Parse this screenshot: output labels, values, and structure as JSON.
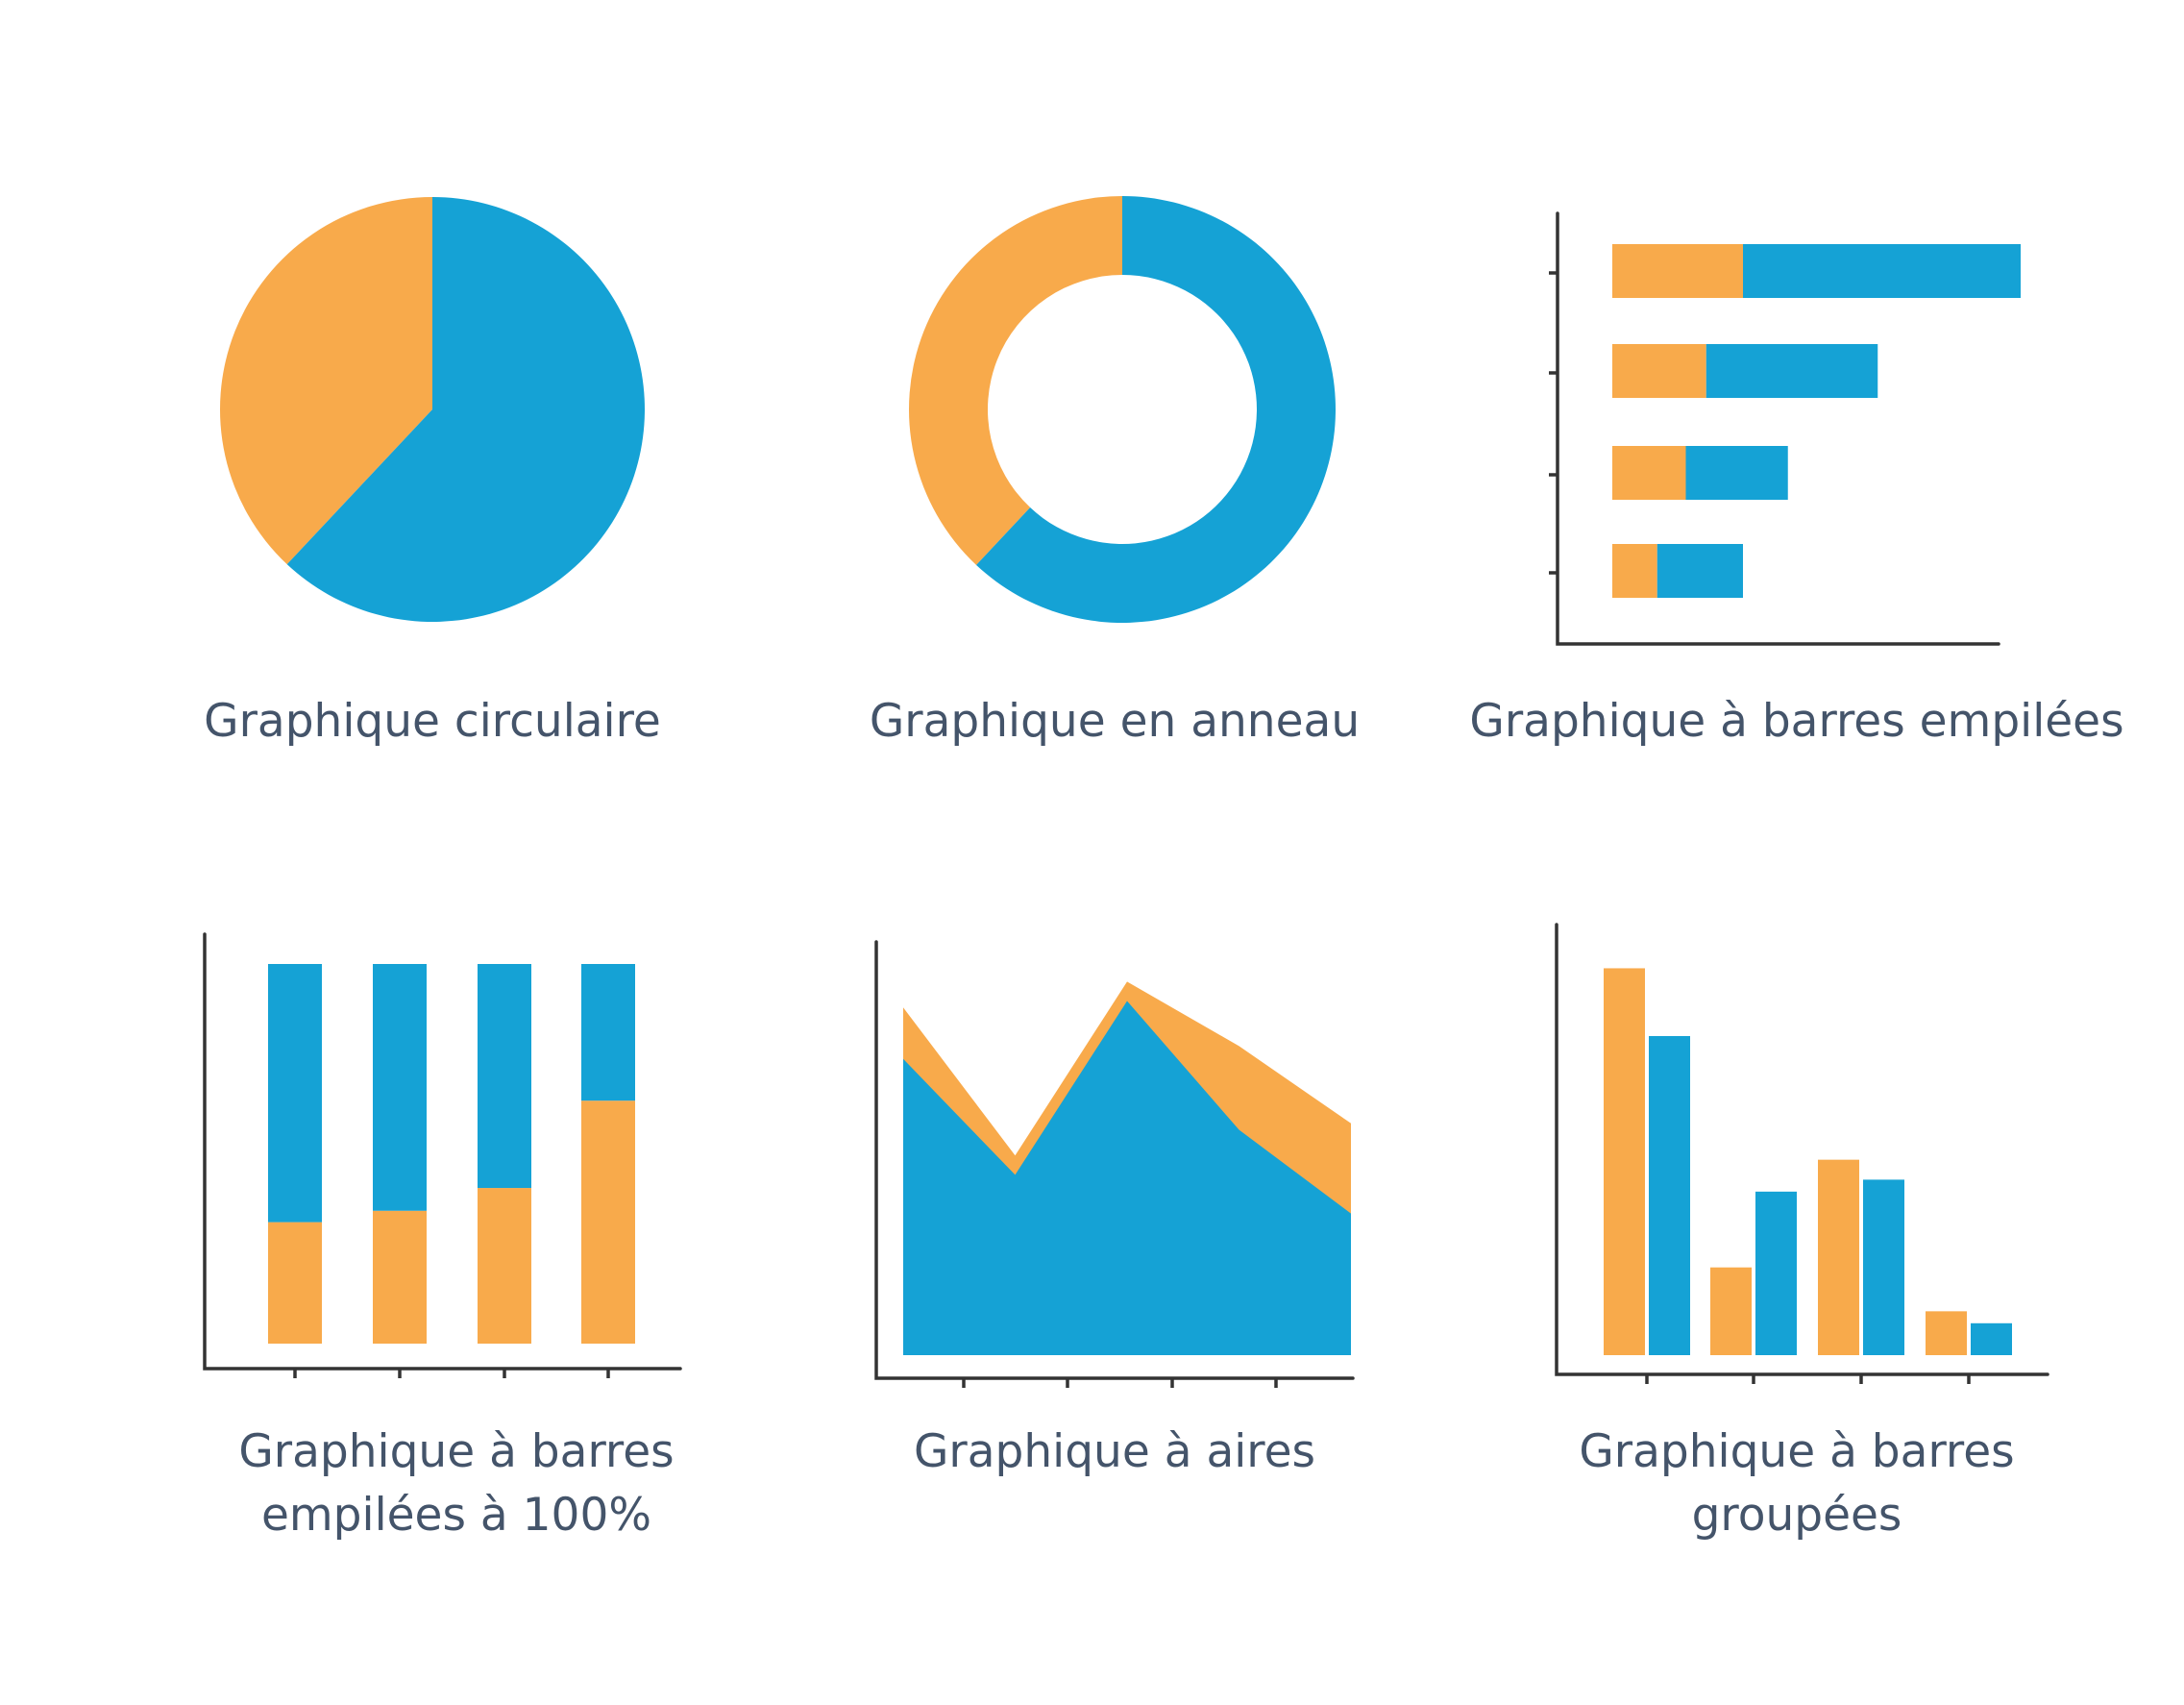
{
  "colors": {
    "orange": "#f8aa4b",
    "blue": "#15a2d5",
    "axis": "#333333",
    "caption": "#44546a"
  },
  "chart_data": [
    {
      "type": "pie",
      "title": "Graphique circulaire",
      "series": [
        {
          "values": [
            38,
            62
          ]
        }
      ]
    },
    {
      "type": "pie",
      "subtype": "donut",
      "title": "Graphique en anneau",
      "series": [
        {
          "values": [
            38,
            62
          ]
        }
      ]
    },
    {
      "type": "bar",
      "orientation": "horizontal",
      "stacked": true,
      "title": "Graphique à barres empilées",
      "series": [
        {
          "values": [
            3.2,
            2.3,
            1.8,
            1.1
          ]
        },
        {
          "values": [
            6.8,
            4.2,
            2.5,
            2.1
          ]
        }
      ],
      "xlim": [
        0,
        12
      ]
    },
    {
      "type": "bar",
      "stacked": "percent",
      "title_lines": [
        "Graphique à barres",
        "empilées à 100%"
      ],
      "series": [
        {
          "values": [
            32,
            35,
            41,
            64
          ]
        },
        {
          "values": [
            68,
            65,
            59,
            36
          ]
        }
      ],
      "ylim": [
        0,
        100
      ]
    },
    {
      "type": "area",
      "stacked": true,
      "title": "Graphique à aires",
      "x": [
        0,
        1,
        2,
        3,
        4
      ],
      "series": [
        {
          "values": [
            4.6,
            2.8,
            5.5,
            3.5,
            2.2
          ]
        },
        {
          "values": [
            0.8,
            0.3,
            0.3,
            1.3,
            1.4
          ]
        }
      ],
      "ylim": [
        0,
        7
      ]
    },
    {
      "type": "bar",
      "grouped": true,
      "title_lines": [
        "Graphique à barres",
        "groupées"
      ],
      "series": [
        {
          "values": [
            9.7,
            2.2,
            4.9,
            1.1
          ]
        },
        {
          "values": [
            8.0,
            4.1,
            4.4,
            0.8
          ]
        }
      ],
      "ylim": [
        0,
        10
      ]
    }
  ]
}
